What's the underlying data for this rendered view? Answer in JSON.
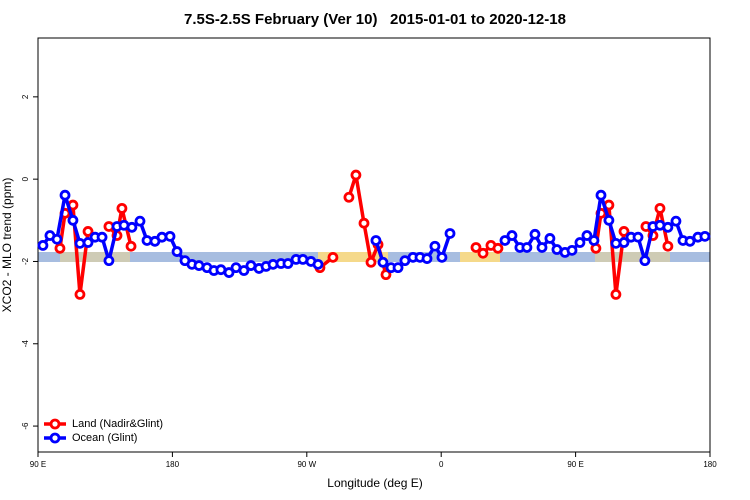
{
  "chart_data": {
    "type": "line",
    "title": "7.5S-2.5S February (Ver 10)   2015-01-01 to 2020-12-18",
    "x_label": "Longitude (deg E)",
    "y_label": "XCO2 - MLO trend (ppm)",
    "xlim": [
      90,
      540
    ],
    "ylim": [
      -6.63,
      3.43
    ],
    "xticks": [
      {
        "value": 90,
        "label": "90 E"
      },
      180,
      {
        "value": 270,
        "label": "90 W"
      },
      {
        "value": 360,
        "label": "0"
      },
      {
        "value": 450,
        "label": "90 E"
      },
      {
        "value": 540,
        "label": "180"
      }
    ],
    "yticks": [
      -6,
      -4,
      -2,
      0,
      2
    ],
    "legend": "bottom-left",
    "series": [
      {
        "name": "Land (Nadir&Glint)",
        "color": "#ff0000",
        "x": [
          104.7,
          108.1,
          113.4,
          118.1,
          123.5,
          null,
          137.5,
          142.9,
          146.2,
          152.3,
          null,
          278.8,
          287.5,
          null,
          298.2,
          302.9,
          308.3,
          313.0,
          317.7,
          323.0,
          null,
          383.3,
          388.0,
          393.3,
          398.0,
          null,
          463.6,
          467.0,
          472.3,
          477.0,
          482.4,
          null,
          497.1,
          501.8,
          506.5,
          511.8
        ],
        "values": [
          -1.68,
          -0.83,
          -0.63,
          -2.8,
          -1.27,
          null,
          -1.15,
          -1.37,
          -0.71,
          -1.63,
          null,
          -2.15,
          -1.9,
          null,
          -0.44,
          0.1,
          -1.07,
          -2.02,
          -1.59,
          -2.32,
          null,
          -1.66,
          -1.8,
          -1.61,
          -1.68,
          null,
          -1.68,
          -0.83,
          -0.63,
          -2.8,
          -1.27,
          null,
          -1.15,
          -1.37,
          -0.71,
          -1.63
        ]
      },
      {
        "name": "Ocean (Glint)",
        "color": "#0000ff",
        "x": [
          93.3,
          98.0,
          102.7,
          108.1,
          113.4,
          118.1,
          123.5,
          128.2,
          132.9,
          137.5,
          142.9,
          147.6,
          152.9,
          158.3,
          163.0,
          168.3,
          173.0,
          178.4,
          183.1,
          188.4,
          193.1,
          197.8,
          203.2,
          207.8,
          212.5,
          217.9,
          222.6,
          227.9,
          232.6,
          238.0,
          242.7,
          247.4,
          252.7,
          257.4,
          262.8,
          267.4,
          272.8,
          277.5,
          null,
          316.3,
          321.0,
          326.4,
          331.1,
          335.7,
          341.1,
          345.8,
          350.5,
          355.8,
          360.5,
          365.9,
          null,
          402.7,
          407.4,
          412.7,
          417.4,
          422.8,
          427.5,
          432.8,
          437.5,
          442.9,
          447.6,
          452.9,
          457.6,
          462.3,
          467.0,
          472.3,
          477.0,
          482.4,
          487.1,
          491.8,
          496.4,
          501.8,
          506.5,
          511.8,
          517.2,
          521.9,
          526.6,
          531.9,
          536.6
        ],
        "values": [
          -1.61,
          -1.37,
          -1.46,
          -0.39,
          -1.0,
          -1.56,
          -1.54,
          -1.41,
          -1.41,
          -1.98,
          -1.15,
          -1.12,
          -1.17,
          -1.02,
          -1.49,
          -1.51,
          -1.41,
          -1.39,
          -1.76,
          -1.98,
          -2.07,
          -2.1,
          -2.15,
          -2.22,
          -2.2,
          -2.27,
          -2.15,
          -2.22,
          -2.1,
          -2.17,
          -2.12,
          -2.07,
          -2.05,
          -2.05,
          -1.95,
          -1.95,
          -2.0,
          -2.07,
          null,
          -1.49,
          -2.02,
          -2.15,
          -2.15,
          -1.98,
          -1.9,
          -1.9,
          -1.93,
          -1.63,
          -1.9,
          -1.32,
          null,
          -1.49,
          -1.37,
          -1.66,
          -1.66,
          -1.34,
          -1.66,
          -1.44,
          -1.71,
          -1.78,
          -1.73,
          -1.54,
          -1.37,
          -1.49,
          -0.39,
          -1.0,
          -1.56,
          -1.54,
          -1.41,
          -1.41,
          -1.98,
          -1.15,
          -1.12,
          -1.17,
          -1.02,
          -1.49,
          -1.51,
          -1.41,
          -1.39
        ]
      }
    ]
  }
}
